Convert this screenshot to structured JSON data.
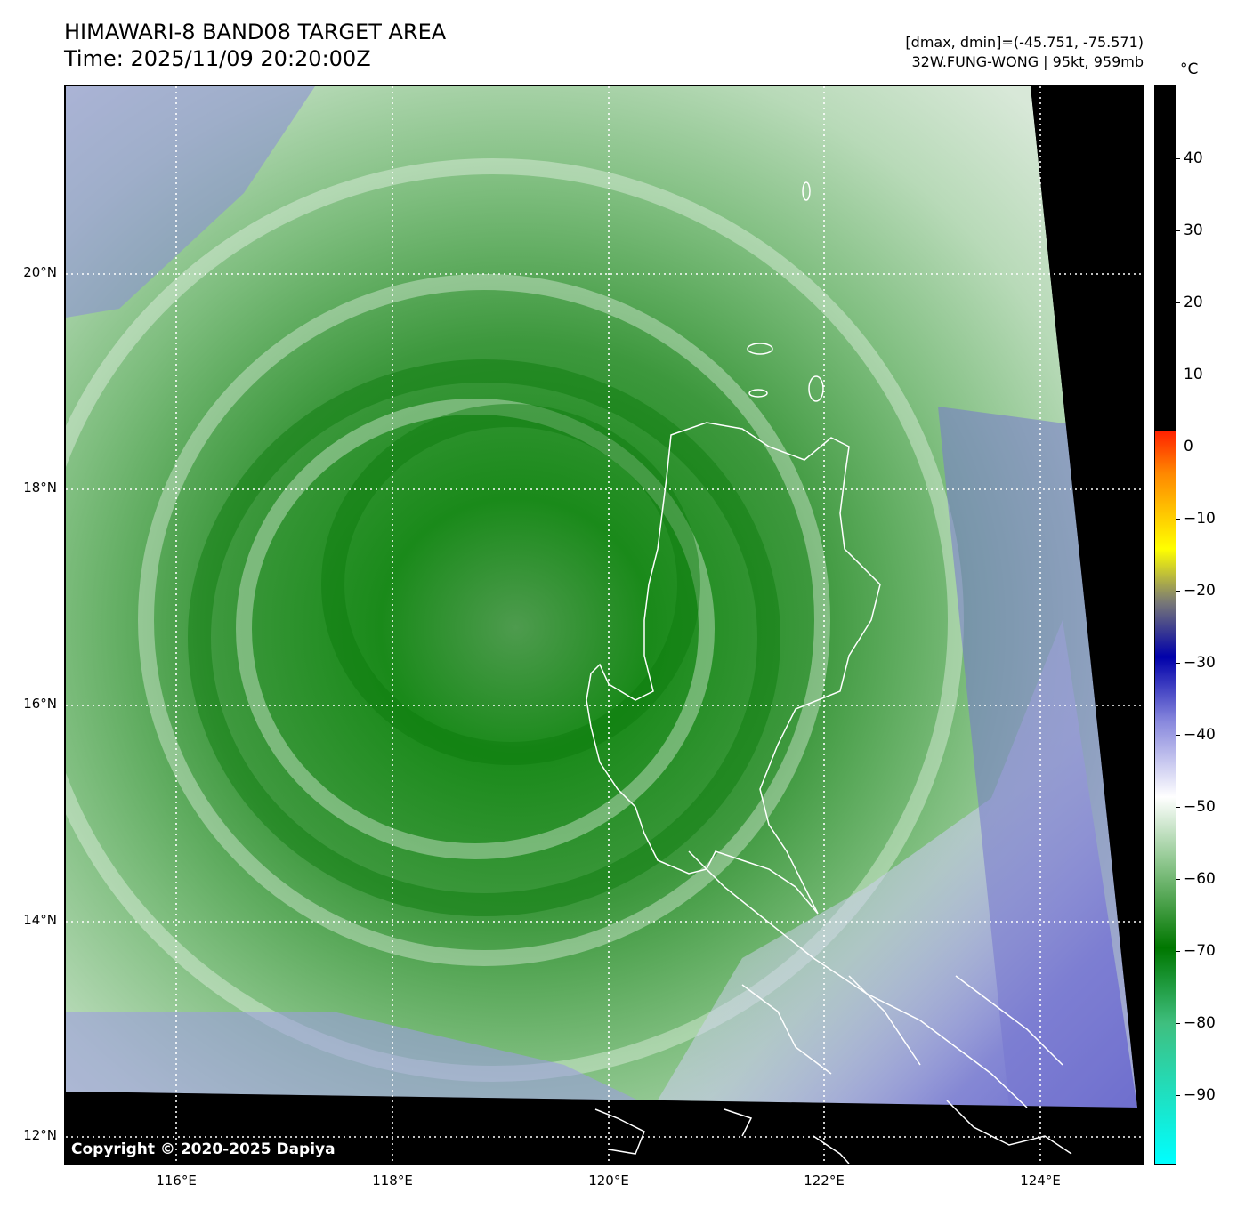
{
  "header": {
    "title_line1": "HIMAWARI-8 BAND08 TARGET AREA",
    "title_line2": "Time: 2025/11/09 20:20:00Z",
    "range_text": "[dmax, dmin]=(-45.751, -75.571)",
    "storm_text": "32W.FUNG-WONG | 95kt, 959mb"
  },
  "map": {
    "copyright": "Copyright © 2020-2025 Dapiya",
    "lat_labels": [
      "20°N",
      "18°N",
      "16°N",
      "14°N",
      "12°N"
    ],
    "lon_labels": [
      "116°E",
      "118°E",
      "120°E",
      "122°E",
      "124°E"
    ]
  },
  "colorbar": {
    "unit": "°C",
    "ticks": [
      "40",
      "30",
      "20",
      "10",
      "0",
      "−10",
      "−20",
      "−30",
      "−40",
      "−50",
      "−60",
      "−70",
      "−80",
      "−90"
    ],
    "colors": {
      "warm": "#000000",
      "red": "#ff2200",
      "yellow": "#ffff00",
      "gray": "#777777",
      "blue": "#0000aa",
      "lavender": "#8888dd",
      "white": "#ffffff",
      "green_light": "#8fc78f",
      "green_dark": "#007700",
      "cyan": "#00ffff"
    }
  }
}
